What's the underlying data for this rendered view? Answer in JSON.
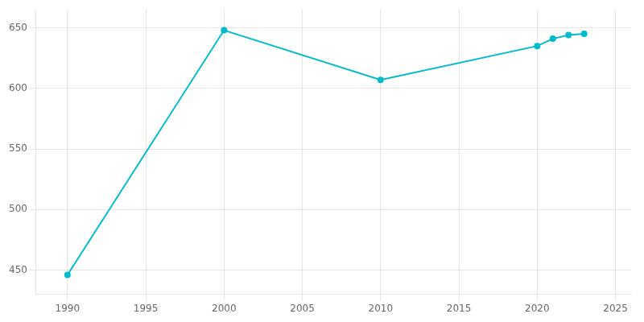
{
  "chart_data": {
    "type": "line",
    "x": [
      1990,
      2000,
      2010,
      2020,
      2021,
      2022,
      2023
    ],
    "values": [
      446,
      648,
      607,
      635,
      641,
      644,
      645
    ],
    "color": "#00BBCC",
    "marker": "circle",
    "xlim": [
      1988,
      2026
    ],
    "xticks": [
      1990,
      1995,
      2000,
      2005,
      2010,
      2015,
      2020,
      2025
    ],
    "ylim": [
      430,
      665
    ],
    "yticks": [
      450,
      500,
      550,
      600,
      650
    ],
    "grid": true
  }
}
